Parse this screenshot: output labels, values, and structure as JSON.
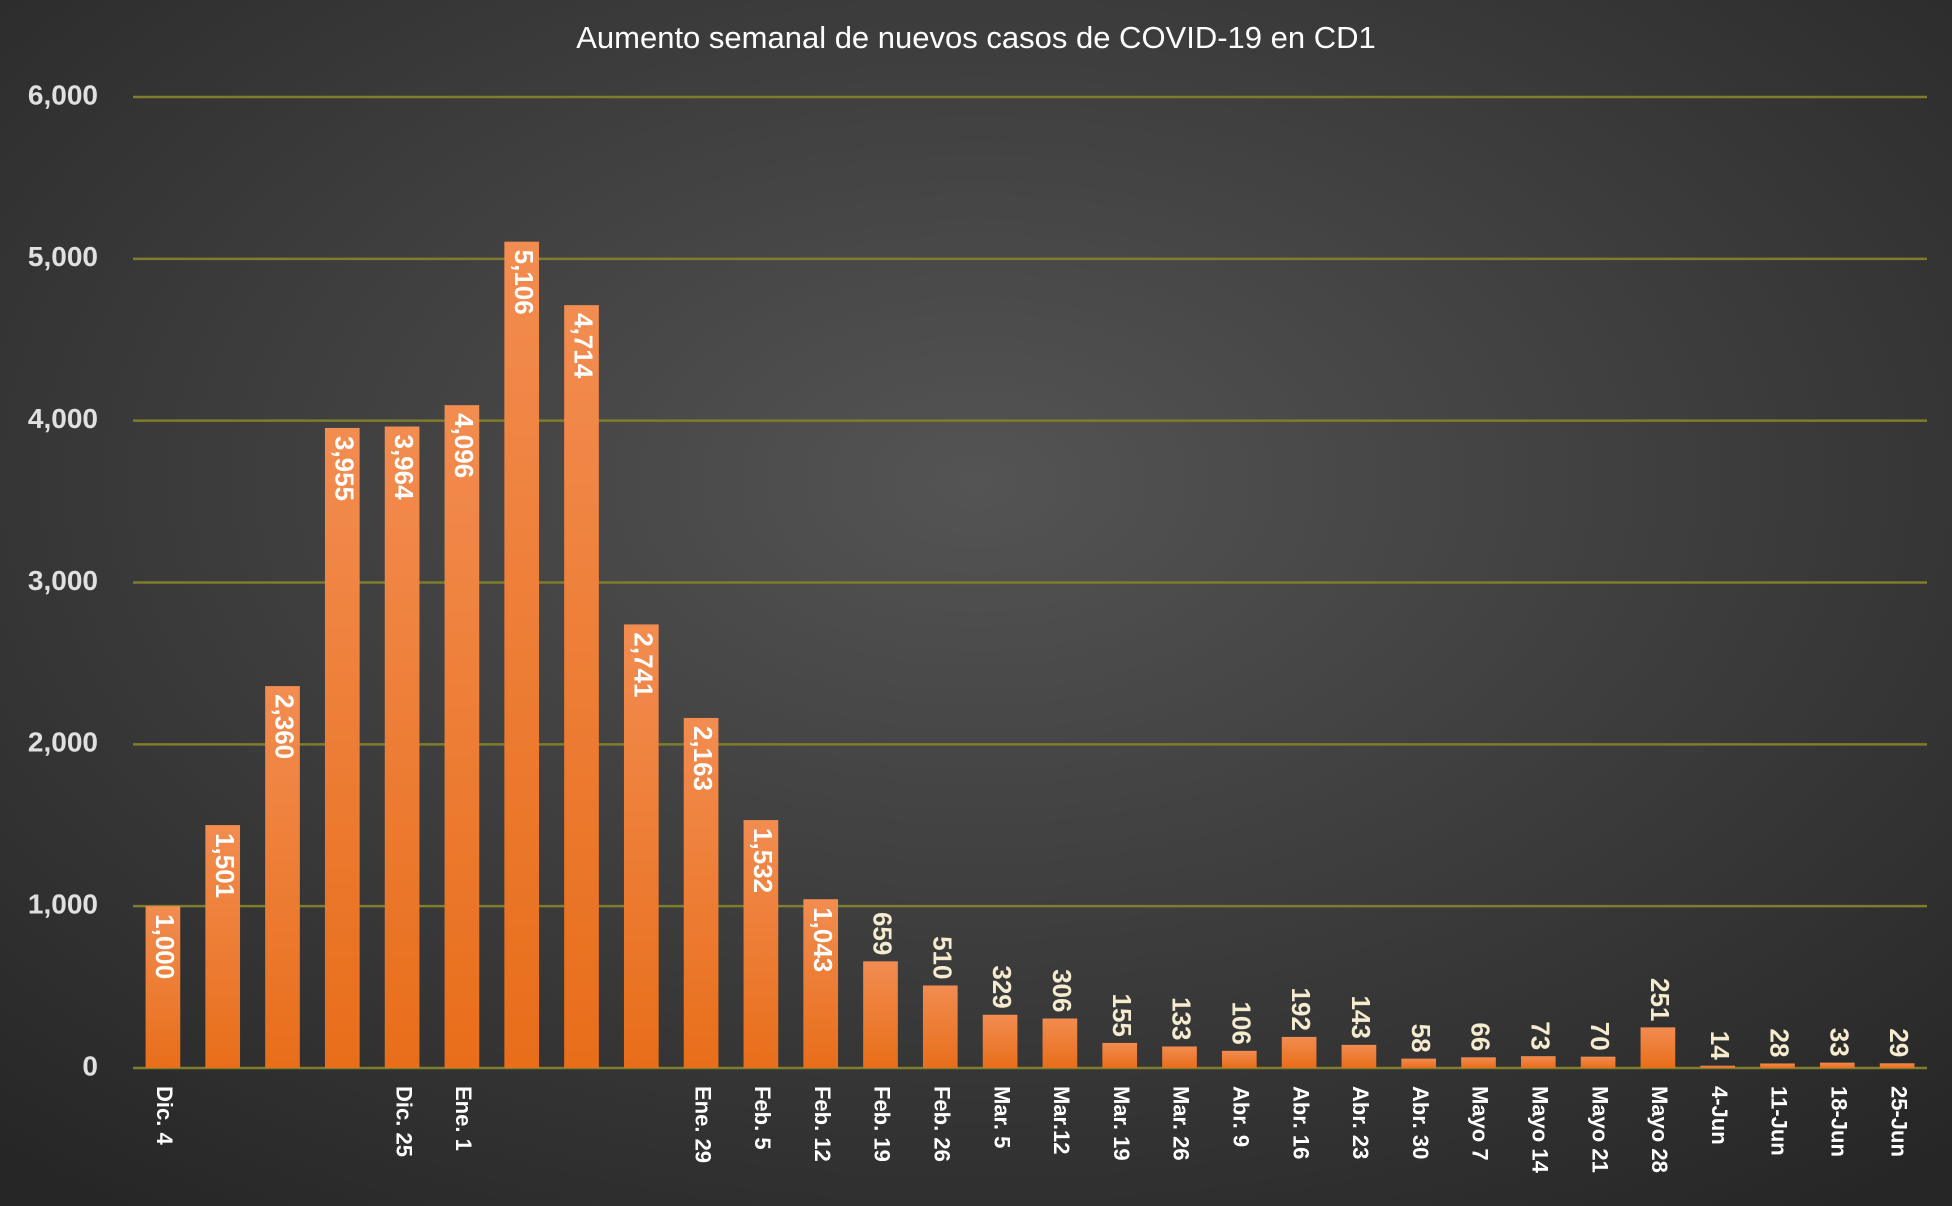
{
  "chart_data": {
    "type": "bar",
    "title": "Aumento semanal de nuevos casos de COVID-19 en CD1",
    "categories": [
      "Dic. 4",
      null,
      null,
      null,
      "Dic. 25",
      "Ene. 1",
      null,
      null,
      null,
      "Ene. 29",
      "Feb. 5",
      "Feb. 12",
      "Feb. 19",
      "Feb. 26",
      "Mar. 5",
      "Mar.12",
      "Mar. 19",
      "Mar. 26",
      "Abr. 9",
      "Abr. 16",
      "Abr. 23",
      "Abr. 30",
      "Mayo 7",
      "Mayo 14",
      "Mayo 21",
      "Mayo 28",
      "4-Jun",
      "11-Jun",
      "18-Jun",
      "25-Jun"
    ],
    "values": [
      1000,
      1501,
      2360,
      3955,
      3964,
      4096,
      5106,
      4714,
      2741,
      2163,
      1532,
      1043,
      659,
      510,
      329,
      306,
      155,
      133,
      106,
      192,
      143,
      58,
      66,
      73,
      70,
      251,
      14,
      28,
      33,
      29
    ],
    "value_labels": [
      "1,000",
      "1,501",
      "2,360",
      "3,955",
      "3,964",
      "4,096",
      "5,106",
      "4,714",
      "2,741",
      "2,163",
      "1,532",
      "1,043",
      "659",
      "510",
      "329",
      "306",
      "155",
      "133",
      "106",
      "192",
      "143",
      "58",
      "66",
      "73",
      "70",
      "251",
      "14",
      "28",
      "33",
      "29"
    ],
    "color": "#ee7a30",
    "ylim": [
      0,
      6000
    ],
    "yticks": [
      0,
      {
        "value": 1000,
        "label": "1,000"
      },
      {
        "value": 2000,
        "label": "2,000"
      },
      {
        "value": 3000,
        "label": "3,000"
      },
      {
        "value": 4000,
        "label": "4,000"
      },
      {
        "value": 5000,
        "label": "5,000"
      },
      {
        "value": 6000,
        "label": "6,000"
      }
    ],
    "grid": true
  }
}
